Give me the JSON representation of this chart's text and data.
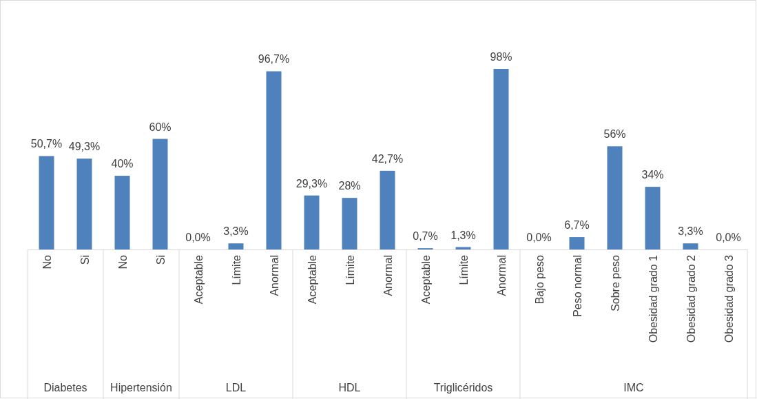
{
  "chart_data": {
    "type": "bar",
    "categories": [
      "No",
      "Si",
      "No",
      "Si",
      "Aceptable",
      "Límite",
      "Anormal",
      "Aceptable",
      "Límite",
      "Anormal",
      "Aceptable",
      "Límite",
      "Anormal",
      "Bajo peso",
      "Peso normal",
      "Sobre peso",
      "Obesidad grado 1",
      "Obesidad grado 2",
      "Obesidad grado 3"
    ],
    "values": [
      50.7,
      49.3,
      40,
      60,
      0,
      3.3,
      96.7,
      29.3,
      28,
      42.7,
      0.7,
      1.3,
      98,
      0,
      6.7,
      56,
      34,
      3.3,
      0
    ],
    "value_labels": [
      "50,7%",
      "49,3%",
      "40%",
      "60%",
      "0,0%",
      "3,3%",
      "96,7%",
      "29,3%",
      "28%",
      "42,7%",
      "0,7%",
      "1,3%",
      "98%",
      "0,0%",
      "6,7%",
      "56%",
      "34%",
      "3,3%",
      "0,0%"
    ],
    "color": "#4f81bd",
    "annotations": [
      "Diabetes",
      "Hipertensión",
      "LDL",
      "HDL",
      "Triglicéridos",
      "IMC"
    ]
  }
}
